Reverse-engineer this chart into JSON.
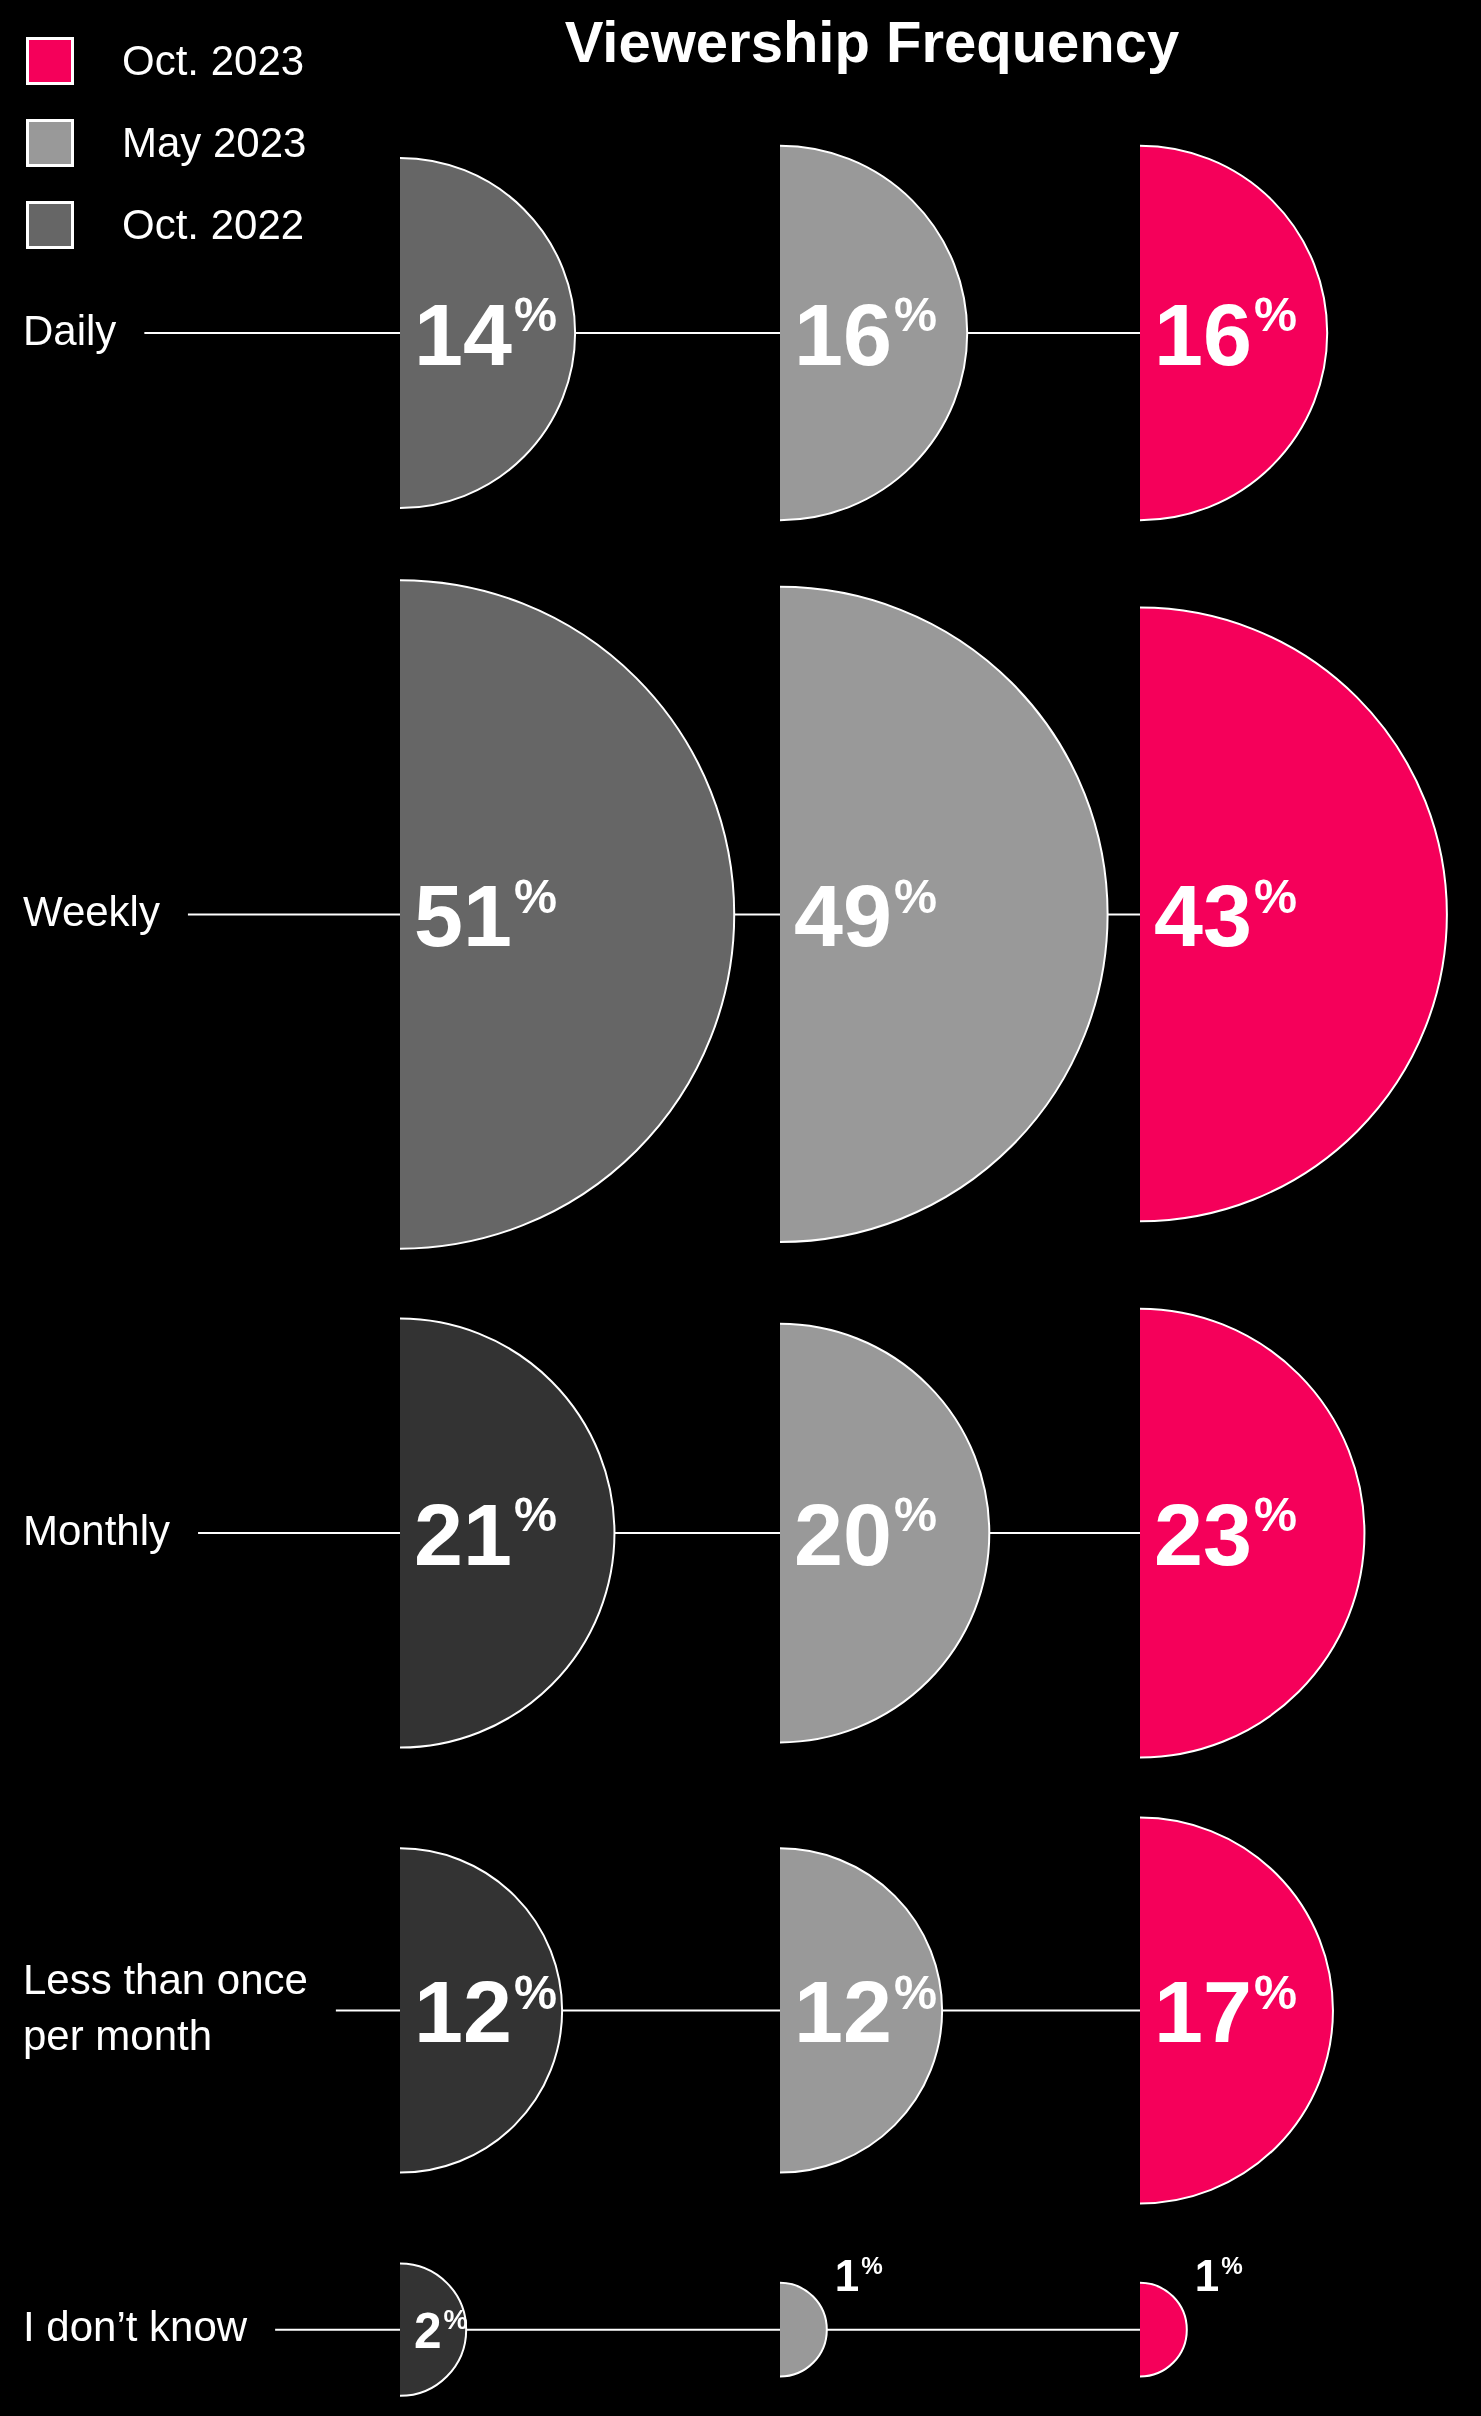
{
  "chart_data": {
    "type": "other",
    "title": "Viewership Frequency",
    "legend": "top left",
    "categories": [
      "Daily",
      "Weekly",
      "Monthly",
      "Less than once per month",
      "I don’t know"
    ],
    "series": [
      {
        "name": "Oct. 2023",
        "color": "#f5005a",
        "values": [
          16,
          43,
          23,
          17,
          1
        ],
        "value_labels": [
          "16%",
          "43%",
          "23%",
          "17%",
          "1%"
        ]
      },
      {
        "name": "May 2023",
        "color": "#999999",
        "values": [
          16,
          49,
          20,
          12,
          1
        ],
        "value_labels": [
          "16%",
          "49%",
          "20%",
          "12%",
          "1%"
        ]
      },
      {
        "name": "Oct. 2022",
        "color": "#666666",
        "colors": [
          "#666666",
          "#666666",
          "#333333",
          "#333333",
          "#333333"
        ],
        "values": [
          14,
          51,
          21,
          12,
          2
        ],
        "value_labels": [
          "14%",
          "51%",
          "21%",
          "12%",
          "2%"
        ]
      }
    ]
  }
}
